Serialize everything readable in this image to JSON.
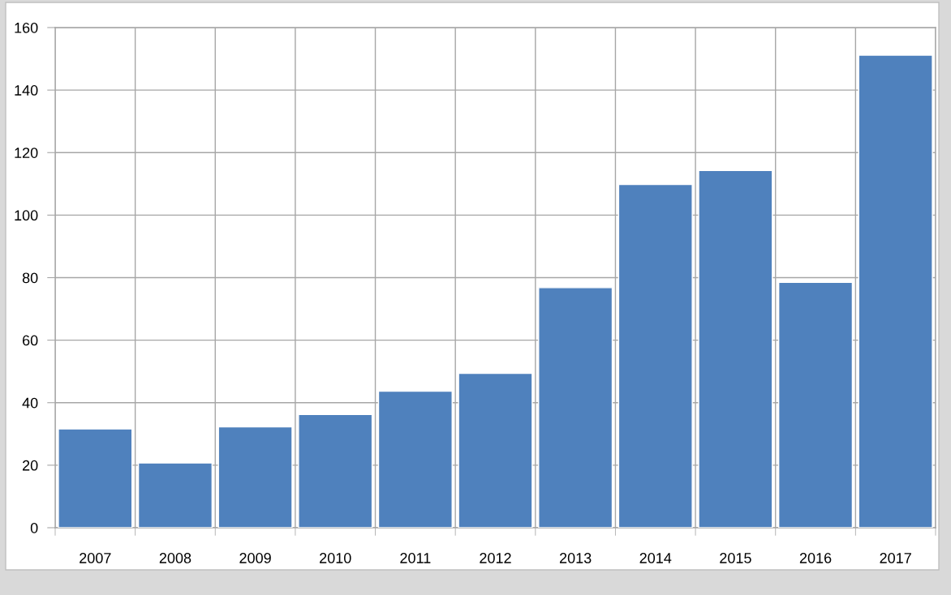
{
  "chart_data": {
    "type": "bar",
    "categories": [
      "2007",
      "2008",
      "2009",
      "2010",
      "2011",
      "2012",
      "2013",
      "2014",
      "2015",
      "2016",
      "2017"
    ],
    "values": [
      31.6,
      20.7,
      32.3,
      36.2,
      43.7,
      49.4,
      76.8,
      109.8,
      114.3,
      78.5,
      151.2
    ],
    "color": "#4f81bd",
    "ylim": [
      0,
      160
    ],
    "yticks": [
      0,
      20,
      40,
      60,
      80,
      100,
      120,
      140,
      160
    ],
    "grid": true
  }
}
